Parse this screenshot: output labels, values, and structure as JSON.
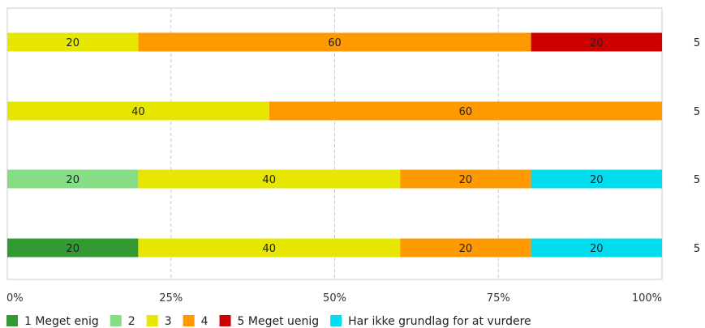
{
  "chart_data": {
    "type": "bar",
    "orientation": "horizontal",
    "stacked": true,
    "xlim": [
      0,
      100
    ],
    "x_ticks": [
      "0%",
      "25%",
      "50%",
      "75%",
      "100%"
    ],
    "grid": true,
    "legend_position": "bottom",
    "series": [
      {
        "name": "1 Meget enig",
        "color": "#339933",
        "values": [
          0,
          0,
          0,
          20
        ]
      },
      {
        "name": "2",
        "color": "#85dd85",
        "values": [
          0,
          0,
          20,
          0
        ]
      },
      {
        "name": "3",
        "color": "#e6e600",
        "values": [
          20,
          40,
          40,
          40
        ]
      },
      {
        "name": "4",
        "color": "#ff9900",
        "values": [
          60,
          60,
          20,
          20
        ]
      },
      {
        "name": "5 Meget uenig",
        "color": "#cc0000",
        "values": [
          20,
          0,
          0,
          0
        ]
      },
      {
        "name": "Har ikke grundlag for  at vurdere",
        "color": "#00ddee",
        "values": [
          0,
          0,
          20,
          20
        ]
      }
    ],
    "row_counts": [
      "5",
      "5",
      "5",
      "5"
    ]
  }
}
